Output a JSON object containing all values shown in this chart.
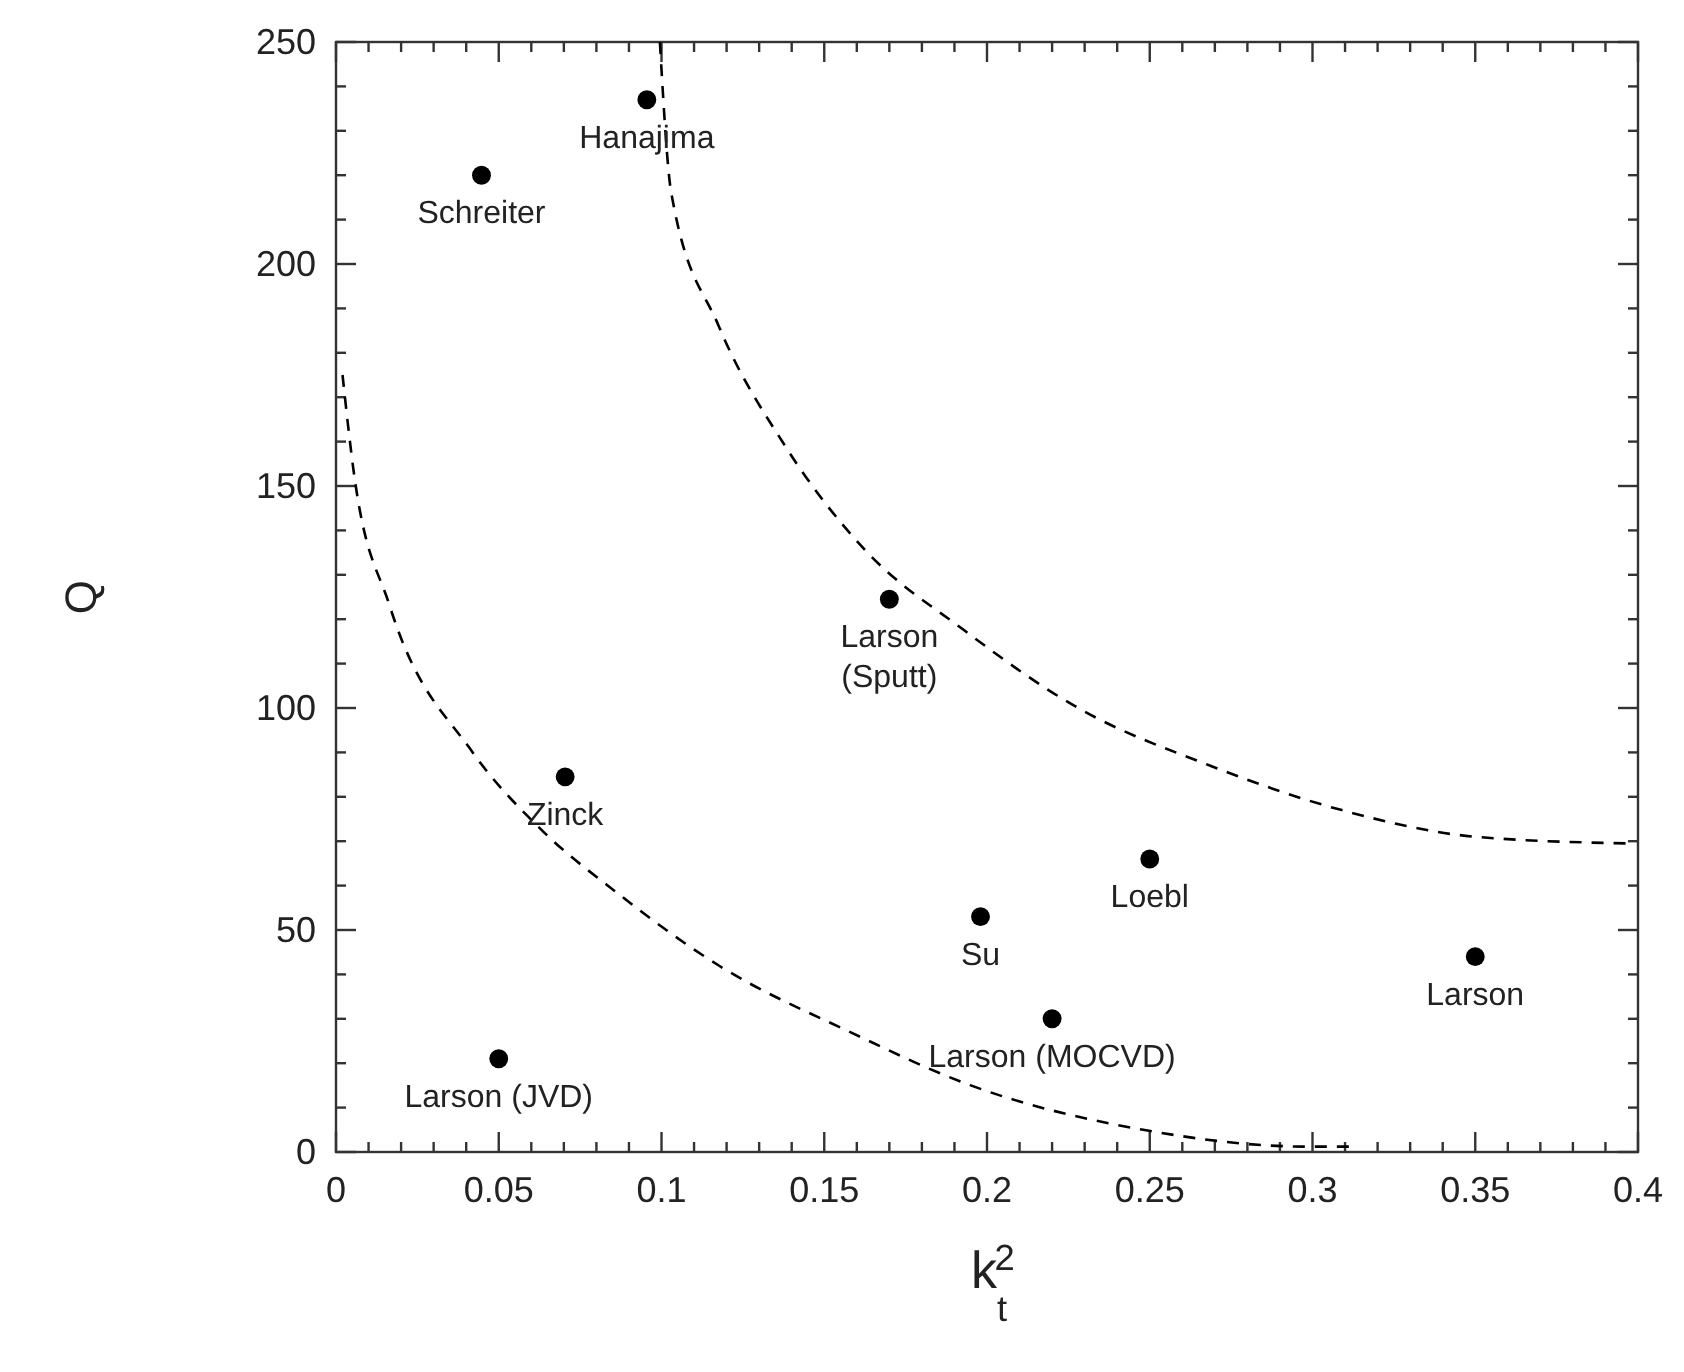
{
  "chart_data": {
    "type": "scatter",
    "xlabel": "k$_{t}$$^{2}$",
    "ylabel": "Q",
    "xlim": [
      0,
      0.4
    ],
    "ylim": [
      0,
      250
    ],
    "xticks": [
      0,
      0.05,
      0.1,
      0.15,
      0.2,
      0.25,
      0.3,
      0.35,
      0.4
    ],
    "yticks": [
      0,
      50,
      100,
      150,
      200,
      250
    ],
    "grid": false,
    "marker": "circle",
    "series": [
      {
        "color": "#000000",
        "x": [
          0.0955,
          0.0447,
          0.17,
          0.0704,
          0.05,
          0.198,
          0.25,
          0.22,
          0.35
        ],
        "values": [
          237,
          220,
          124.5,
          84.5,
          21,
          53,
          66,
          30,
          44
        ]
      },
      {
        "type": "line",
        "color": "#000000",
        "marker": "none",
        "line_style": "dashed",
        "x": [
          0.002,
          0.0053,
          0.0165,
          0.042,
          0.0625,
          0.087,
          0.1176,
          0.158,
          0.195,
          0.248,
          0.299,
          0.313
        ],
        "values": [
          175,
          154,
          123,
          90,
          73,
          58,
          42,
          27,
          15,
          5,
          1.2,
          1.2
        ]
      },
      {
        "type": "line",
        "color": "#000000",
        "marker": "none",
        "line_style": "dashed",
        "x": [
          0.0995,
          0.103,
          0.1176,
          0.138,
          0.162,
          0.193,
          0.228,
          0.2686,
          0.309,
          0.35,
          0.397
        ],
        "values": [
          250,
          216,
          186,
          159,
          136,
          117.5,
          100,
          87,
          77,
          71,
          69.5
        ]
      }
    ],
    "annotations": [
      {
        "text": "Hanajima",
        "x": 0.0955,
        "y": 237
      },
      {
        "text": "Schreiter",
        "x": 0.0447,
        "y": 220
      },
      {
        "text": "Larson\n(Sputt)",
        "x": 0.17,
        "y": 124.5
      },
      {
        "text": "Zinck",
        "x": 0.0704,
        "y": 84.5
      },
      {
        "text": "Larson (JVD)",
        "x": 0.05,
        "y": 21
      },
      {
        "text": "Su",
        "x": 0.198,
        "y": 53
      },
      {
        "text": "Loebl",
        "x": 0.25,
        "y": 66
      },
      {
        "text": "Larson (MOCVD)",
        "x": 0.22,
        "y": 30
      },
      {
        "text": "Larson",
        "x": 0.35,
        "y": 44
      }
    ]
  }
}
